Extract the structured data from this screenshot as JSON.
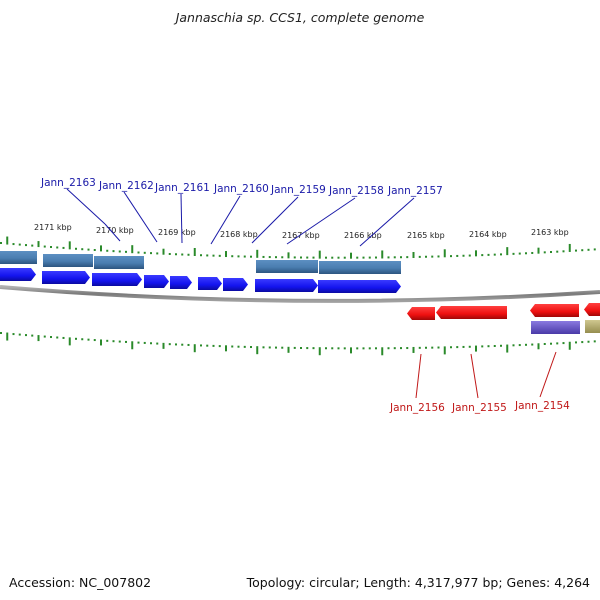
{
  "title": "Jannaschia sp. CCS1, complete genome",
  "footer": {
    "accession": "Accession: NC_007802",
    "summary": "Topology: circular; Length: 4,317,977 bp; Genes: 4,264"
  },
  "colors": {
    "ruler_tick": "#2a8a2a",
    "backbone": "#8a8a8a",
    "forward_cds": "#1414ee",
    "forward_gene": "#4a7db0",
    "reverse_cds": "#ee1010",
    "reverse_gene_purple": "#6a5ac8",
    "reverse_gene_olive": "#b8b070",
    "forward_label": "#1a1aa8",
    "reverse_label": "#c01818"
  },
  "ruler": [
    "2171 kbp",
    "2170 kbp",
    "2169 kbp",
    "2168 kbp",
    "2167 kbp",
    "2166 kbp",
    "2165 kbp",
    "2164 kbp",
    "2163 kbp"
  ],
  "forward_labels": [
    "Jann_2163",
    "Jann_2162",
    "Jann_2161",
    "Jann_2160",
    "Jann_2159",
    "Jann_2158",
    "Jann_2157"
  ],
  "reverse_labels": [
    "Jann_2156",
    "Jann_2155",
    "Jann_2154"
  ]
}
